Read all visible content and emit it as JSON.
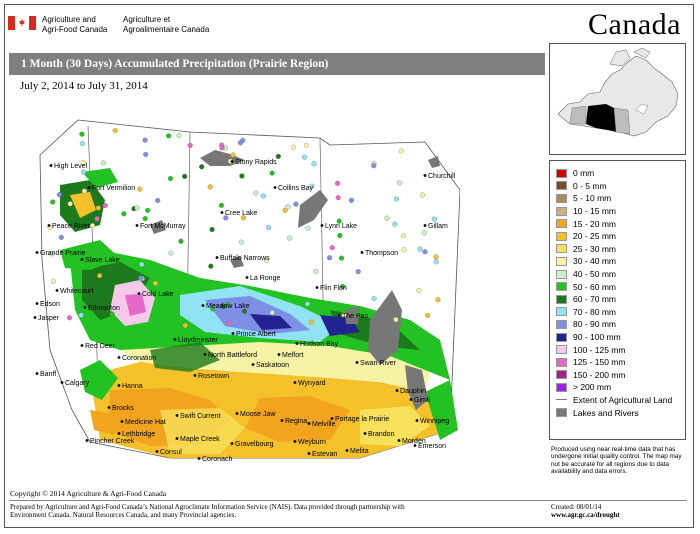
{
  "header": {
    "dept_en_line1": "Agriculture and",
    "dept_en_line2": "Agri-Food Canada",
    "dept_fr_line1": "Agriculture et",
    "dept_fr_line2": "Agroalimentaire Canada",
    "wordmark": "Canada",
    "title": "1 Month (30 Days) Accumulated Precipitation (Prairie Region)",
    "date_range": "July 2, 2014 to July 31, 2014"
  },
  "legend": {
    "items": [
      {
        "label": "0 mm",
        "color": "#d00000"
      },
      {
        "label": "0 - 5 mm",
        "color": "#7b4a2a"
      },
      {
        "label": "5 - 10 mm",
        "color": "#a58d5e"
      },
      {
        "label": "10 - 15 mm",
        "color": "#c9b27a"
      },
      {
        "label": "15 - 20 mm",
        "color": "#f2a41e"
      },
      {
        "label": "20 - 25 mm",
        "color": "#f5c12a"
      },
      {
        "label": "25 - 30 mm",
        "color": "#f7e05a"
      },
      {
        "label": "30 - 40 mm",
        "color": "#f7f3a6"
      },
      {
        "label": "40 - 50 mm",
        "color": "#c9f1c6"
      },
      {
        "label": "50 - 60 mm",
        "color": "#22c222"
      },
      {
        "label": "60 - 70 mm",
        "color": "#1c7a1c"
      },
      {
        "label": "70 - 80 mm",
        "color": "#8fe3f2"
      },
      {
        "label": "80 - 90 mm",
        "color": "#7f8fe6"
      },
      {
        "label": "90 - 100 mm",
        "color": "#23238f"
      },
      {
        "label": "100 - 125 mm",
        "color": "#f6c8ea"
      },
      {
        "label": "125 - 150 mm",
        "color": "#e667c9"
      },
      {
        "label": "150 - 200 mm",
        "color": "#a6238f"
      },
      {
        "label": "> 200 mm",
        "color": "#a020f0"
      }
    ],
    "extent_label": "Extent of Agricultural Land",
    "lakes_label": "Lakes and Rivers",
    "lakes_color": "#777777"
  },
  "disclaimer": "Produced using near real-time data that has undergone initial quality control. The map may not be accurate for all regions due to data availability and data errors.",
  "footer": {
    "copyright": "Copyright © 2014 Agriculture & Agri-Food Canada",
    "credits_line1": "Prepared by Agriculture and Agri-Food Canada’s National Agroclimate Information Service (NAIS).  Data provided through partnership with",
    "credits_line2": "Environment Canada, Natural Resources Canada, and many Provincial agencies.",
    "created": "Created: 08/01/14",
    "url": "www.agr.gc.ca/drought"
  },
  "places": [
    "High Level",
    "Fort Vermilion",
    "Stony Rapids",
    "Churchill",
    "Collins Bay",
    "Peace River",
    "Fort McMurray",
    "Cree Lake",
    "Lynn Lake",
    "Gillam",
    "Grande Prairie",
    "Slave Lake",
    "Buffalo Narrows",
    "Thompson",
    "La Ronge",
    "Edson",
    "Whitecourt",
    "Edmonton",
    "Cold Lake",
    "Meadow Lake",
    "Flin Flon",
    "The Pas",
    "Jasper",
    "Prince Albert",
    "Lloydminster",
    "Hudson Bay",
    "Red Deer",
    "Coronation",
    "North Battleford",
    "Melfort",
    "Saskatoon",
    "Banff",
    "Hanna",
    "Wynyard",
    "Swan River",
    "Rosetown",
    "Calgary",
    "Dauphin",
    "Gimli",
    "Brooks",
    "Swift Current",
    "Moose Jaw",
    "Melville",
    "Portage la Prairie",
    "Winnipeg",
    "Medicine Hat",
    "Regina",
    "Lethbridge",
    "Brandon",
    "Pincher Creek",
    "Maple Creek",
    "Gravelbourg",
    "Weyburn",
    "Morden",
    "Emerson",
    "Consul",
    "Coronach",
    "Estevan",
    "Melita"
  ]
}
